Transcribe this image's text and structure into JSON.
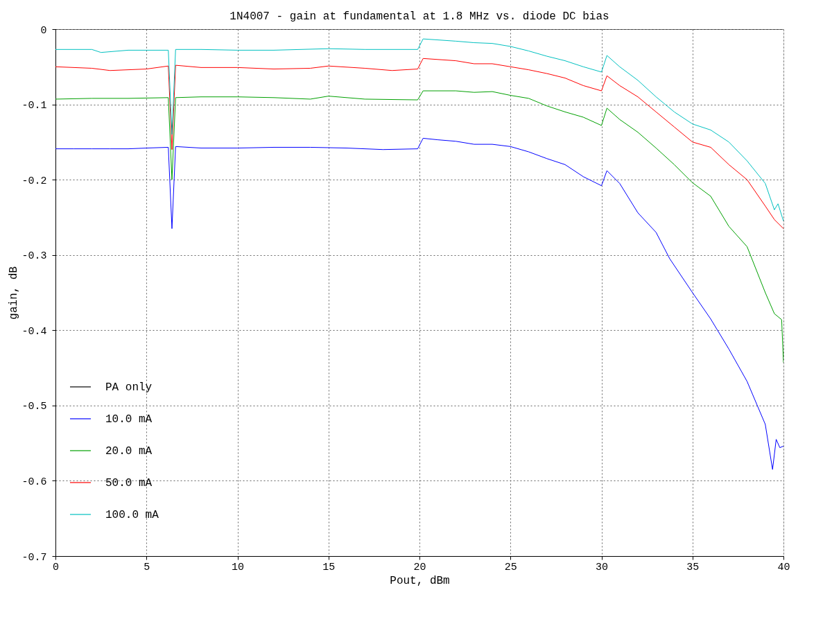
{
  "chart_data": {
    "type": "line",
    "title": "1N4007 - gain at fundamental at 1.8 MHz vs. diode DC bias",
    "xlabel": "Pout, dBm",
    "ylabel": "gain, dB",
    "xlim": [
      0,
      40
    ],
    "xticks": [
      0,
      5,
      10,
      15,
      20,
      25,
      30,
      35,
      40
    ],
    "ylim": [
      -0.7,
      0
    ],
    "yticks": [
      -0.7,
      -0.6,
      -0.5,
      -0.4,
      -0.3,
      -0.2,
      -0.1,
      0
    ],
    "grid": true,
    "legend": "bottom left",
    "line_style": "solid",
    "marker": "none",
    "series": [
      {
        "name": "PA only",
        "color": "#000000",
        "x": [
          0,
          40
        ],
        "values": [
          0,
          0
        ]
      },
      {
        "name": "10.0 mA",
        "color": "#0000ff",
        "x": [
          0,
          1,
          2,
          3,
          4,
          5,
          6.2,
          6.4,
          6.6,
          8,
          10,
          12,
          14,
          16,
          18,
          19.9,
          20.2,
          21,
          22,
          23,
          24,
          25,
          26,
          27,
          28,
          29,
          30,
          30.3,
          31,
          32,
          33,
          33.75,
          35,
          36,
          37,
          38,
          39,
          39.4,
          39.6,
          39.8,
          40
        ],
        "values": [
          -0.159,
          -0.159,
          -0.159,
          -0.159,
          -0.159,
          -0.158,
          -0.157,
          -0.265,
          -0.156,
          -0.158,
          -0.158,
          -0.157,
          -0.157,
          -0.158,
          -0.16,
          -0.159,
          -0.145,
          -0.147,
          -0.149,
          -0.153,
          -0.153,
          -0.156,
          -0.163,
          -0.172,
          -0.18,
          -0.196,
          -0.208,
          -0.188,
          -0.205,
          -0.244,
          -0.27,
          -0.305,
          -0.35,
          -0.385,
          -0.425,
          -0.468,
          -0.525,
          -0.585,
          -0.545,
          -0.556,
          -0.554
        ]
      },
      {
        "name": "20.0 mA",
        "color": "#00a000",
        "x": [
          0,
          2,
          4,
          6.2,
          6.4,
          6.6,
          8,
          10,
          12,
          14,
          15,
          17,
          19.9,
          20.2,
          22,
          23,
          24,
          25,
          26,
          27,
          28,
          29,
          30,
          30.3,
          31,
          32,
          33,
          34,
          35,
          36,
          37,
          38,
          39,
          39.5,
          39.9,
          40
        ],
        "values": [
          -0.093,
          -0.092,
          -0.092,
          -0.091,
          -0.2,
          -0.091,
          -0.09,
          -0.09,
          -0.091,
          -0.093,
          -0.089,
          -0.093,
          -0.094,
          -0.082,
          -0.082,
          -0.084,
          -0.083,
          -0.088,
          -0.092,
          -0.102,
          -0.11,
          -0.117,
          -0.128,
          -0.105,
          -0.12,
          -0.137,
          -0.158,
          -0.18,
          -0.204,
          -0.222,
          -0.262,
          -0.289,
          -0.35,
          -0.378,
          -0.386,
          -0.443
        ]
      },
      {
        "name": "50.0 mA",
        "color": "#ff0000",
        "x": [
          0,
          2,
          3,
          5,
          6.2,
          6.4,
          6.6,
          8,
          10,
          12,
          14,
          15,
          17,
          18.5,
          19.9,
          20.2,
          22,
          23,
          24,
          25,
          26,
          27,
          28,
          29,
          30,
          30.3,
          31,
          32,
          33,
          34,
          35,
          36,
          37,
          38,
          39,
          39.5,
          40
        ],
        "values": [
          -0.05,
          -0.052,
          -0.055,
          -0.053,
          -0.049,
          -0.16,
          -0.048,
          -0.051,
          -0.051,
          -0.053,
          -0.052,
          -0.049,
          -0.052,
          -0.055,
          -0.053,
          -0.039,
          -0.042,
          -0.046,
          -0.046,
          -0.05,
          -0.054,
          -0.059,
          -0.065,
          -0.075,
          -0.082,
          -0.062,
          -0.075,
          -0.09,
          -0.11,
          -0.13,
          -0.15,
          -0.157,
          -0.18,
          -0.2,
          -0.235,
          -0.253,
          -0.265
        ]
      },
      {
        "name": "100.0 mA",
        "color": "#00c0c0",
        "x": [
          0,
          2,
          2.5,
          4,
          6.2,
          6.4,
          6.6,
          8,
          10,
          12,
          15,
          17,
          19.9,
          20.2,
          22,
          23,
          24,
          25,
          26,
          27,
          28,
          29,
          30,
          30.3,
          31,
          32,
          33,
          34,
          35,
          36,
          37,
          38,
          39,
          39.5,
          39.7,
          40
        ],
        "values": [
          -0.027,
          -0.027,
          -0.031,
          -0.028,
          -0.028,
          -0.14,
          -0.027,
          -0.027,
          -0.028,
          -0.028,
          -0.026,
          -0.027,
          -0.027,
          -0.013,
          -0.016,
          -0.018,
          -0.019,
          -0.023,
          -0.029,
          -0.036,
          -0.042,
          -0.05,
          -0.057,
          -0.035,
          -0.05,
          -0.068,
          -0.09,
          -0.11,
          -0.126,
          -0.134,
          -0.15,
          -0.175,
          -0.205,
          -0.24,
          -0.232,
          -0.255
        ]
      }
    ]
  }
}
